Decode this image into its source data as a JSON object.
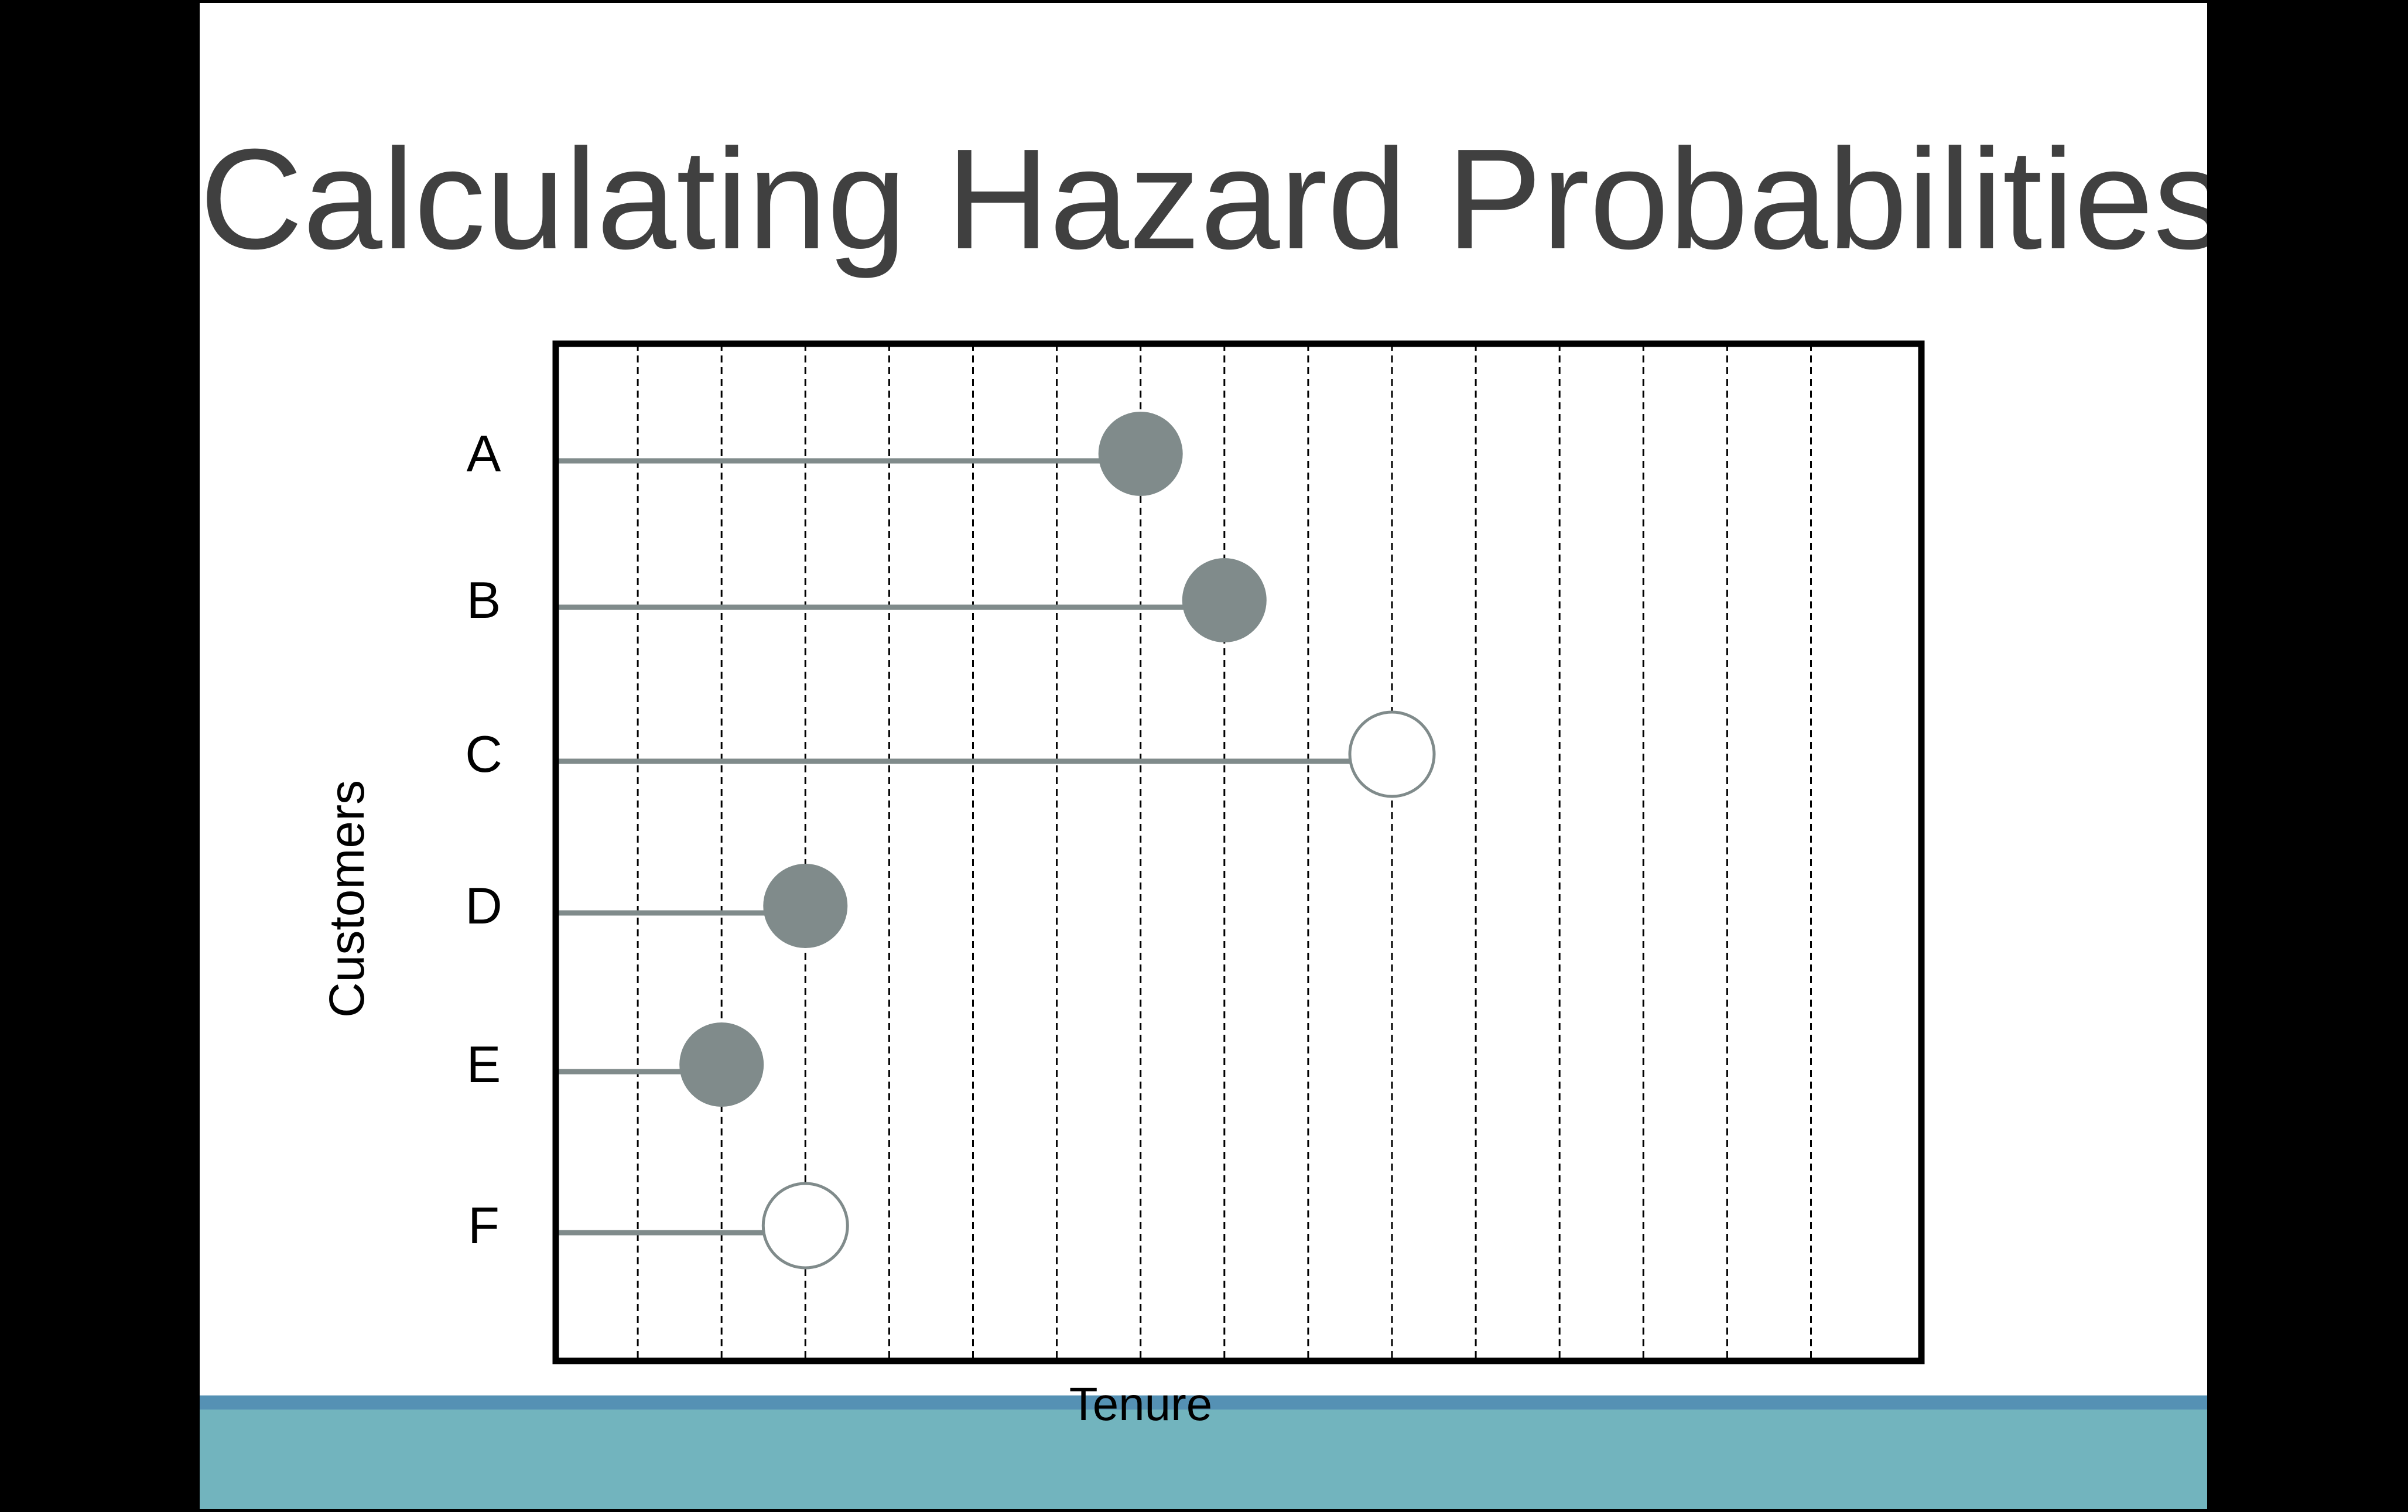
{
  "slide": {
    "title": "Calculating Hazard Probabilities"
  },
  "colors": {
    "background": "#000000",
    "slide": "#ffffff",
    "title": "#404040",
    "event_marker": "#808b8b",
    "censored_marker_fill": "#ffffff",
    "lifeline": "#808b8b",
    "footer_stripe": "#5591b4",
    "footer_band": "#72b4be"
  },
  "chart_data": {
    "type": "scatter",
    "title": "",
    "xlabel": "Tenure",
    "ylabel": "Customers",
    "xlim": [
      0,
      16
    ],
    "x_grid_lines": [
      1,
      2,
      3,
      4,
      5,
      6,
      7,
      8,
      9,
      10,
      11,
      12,
      13,
      14,
      15
    ],
    "grid": "vertical dashed",
    "legend": "none",
    "categories": [
      "A",
      "B",
      "C",
      "D",
      "E",
      "F"
    ],
    "series": [
      {
        "values": [
          7,
          8,
          10,
          3,
          2,
          3
        ],
        "status": [
          "stopped",
          "stopped",
          "active",
          "stopped",
          "stopped",
          "active"
        ]
      }
    ]
  }
}
